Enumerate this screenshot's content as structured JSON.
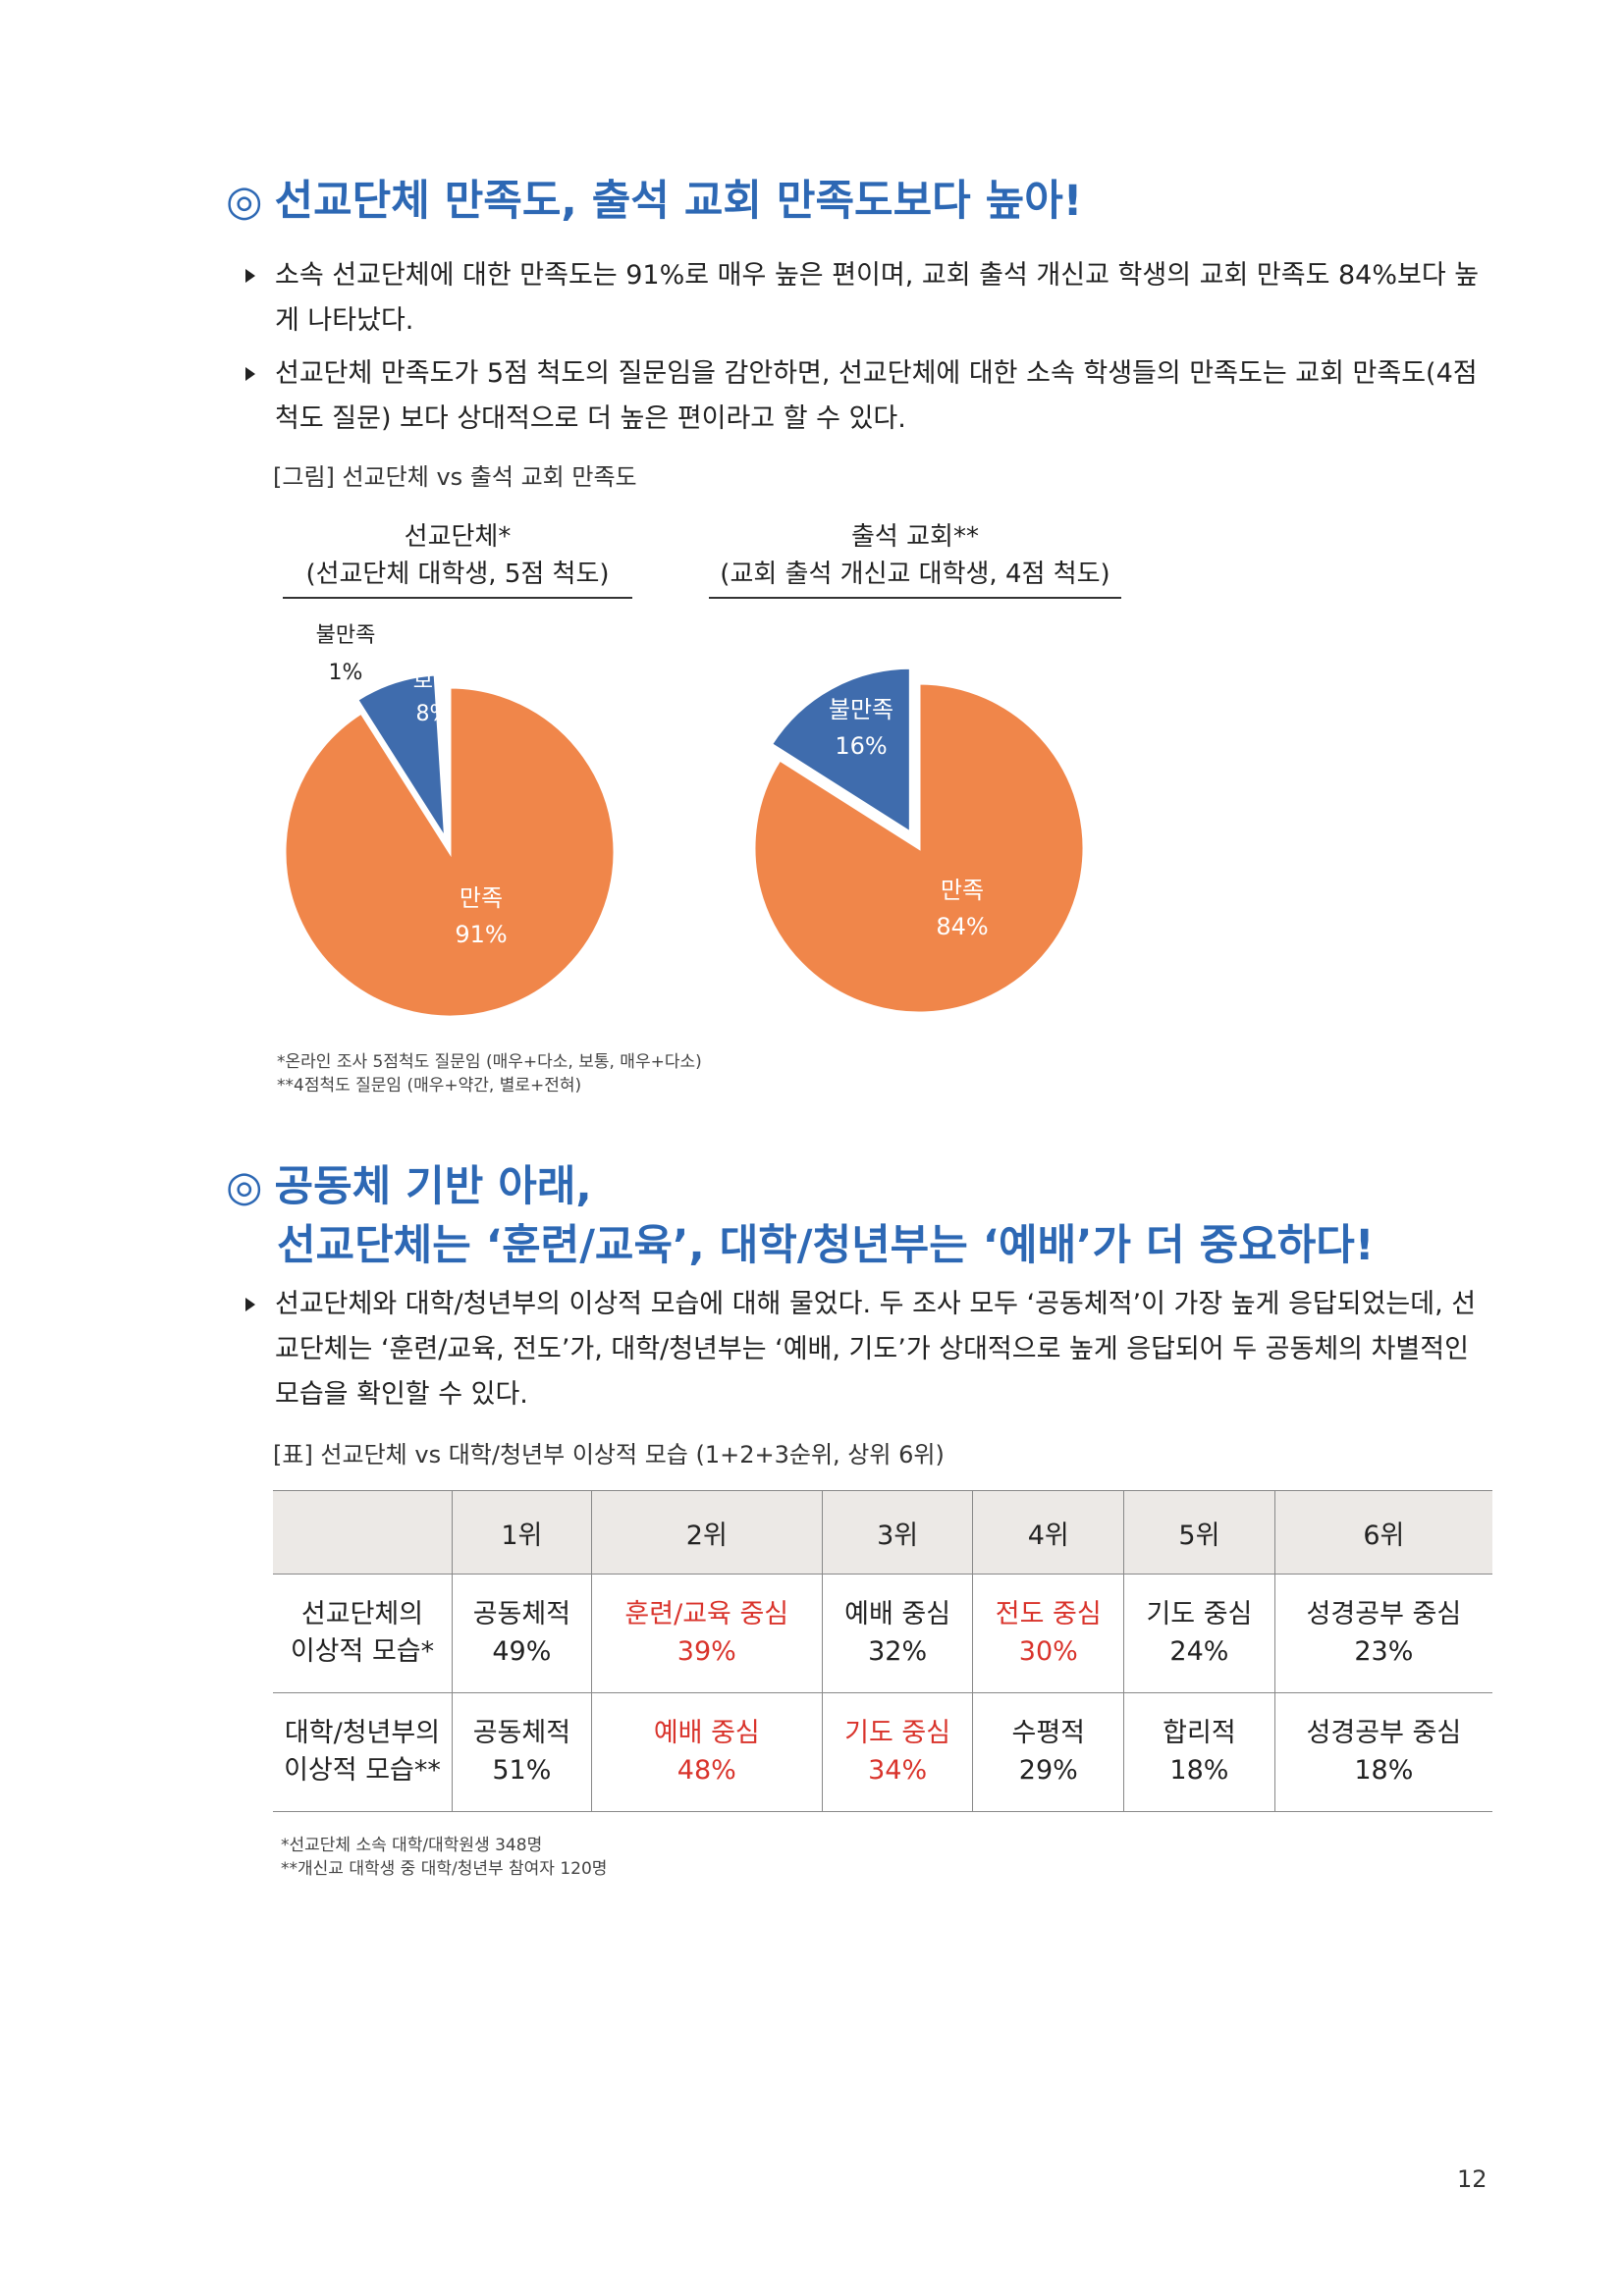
{
  "section1": {
    "mark": "◎",
    "title": "선교단체 만족도, 출석 교회 만족도보다 높아!",
    "bullets": [
      "소속 선교단체에 대한 만족도는 91%로 매우 높은 편이며, 교회 출석 개신교 학생의 교회 만족도 84%보다 높게 나타났다.",
      "선교단체 만족도가 5점 척도의 질문임을 감안하면, 선교단체에 대한 소속 학생들의 만족도는 교회 만족도(4점 척도 질문) 보다 상대적으로 더 높은 편이라고 할 수 있다."
    ],
    "figure_caption": "[그림] 선교단체 vs 출석 교회 만족도",
    "pie_left": {
      "title_line1": "선교단체*",
      "title_line2": "(선교단체 대학생, 5점 척도)"
    },
    "pie_right": {
      "title_line1": "출석 교회**",
      "title_line2": "(교회 출석 개신교 대학생, 4점 척도)"
    },
    "notes": [
      "*온라인 조사 5점척도 질문임 (매우+다소, 보통, 매우+다소)",
      "**4점척도 질문임 (매우+약간, 별로+전혀)"
    ]
  },
  "chart_data": [
    {
      "type": "pie",
      "title": "선교단체*",
      "subtitle": "(선교단체 대학생, 5점 척도)",
      "slices": [
        {
          "label": "만족",
          "value": 91,
          "display": "91%",
          "color": "#f0864a"
        },
        {
          "label": "불만족",
          "value": 1,
          "display": "1%",
          "color": "#ffffff"
        },
        {
          "label": "보통",
          "value": 8,
          "display": "8%",
          "color": "#3f6cad"
        }
      ]
    },
    {
      "type": "pie",
      "title": "출석 교회**",
      "subtitle": "(교회 출석 개신교 대학생, 4점 척도)",
      "slices": [
        {
          "label": "만족",
          "value": 84,
          "display": "84%",
          "color": "#f0864a"
        },
        {
          "label": "불만족",
          "value": 16,
          "display": "16%",
          "color": "#3f6cad"
        }
      ]
    }
  ],
  "section2": {
    "mark": "◎",
    "title_line1": "공동체 기반 아래,",
    "title_line2": "선교단체는 ‘훈련/교육’, 대학/청년부는 ‘예배’가 더 중요하다!",
    "bullet": "선교단체와 대학/청년부의 이상적 모습에 대해 물었다. 두 조사 모두 ‘공동체적’이 가장 높게 응답되었는데, 선교단체는 ‘훈련/교육, 전도’가, 대학/청년부는 ‘예배, 기도’가 상대적으로 높게 응답되어 두 공동체의 차별적인 모습을 확인할 수 있다.",
    "table_caption": "[표] 선교단체 vs 대학/청년부 이상적 모습 (1+2+3순위, 상위 6위)",
    "table": {
      "headers": [
        "",
        "1위",
        "2위",
        "3위",
        "4위",
        "5위",
        "6위"
      ],
      "rows": [
        {
          "label_line1": "선교단체의",
          "label_line2": "이상적 모습*",
          "cells": [
            {
              "name": "공동체적",
              "pct": "49%"
            },
            {
              "name": "훈련/교육 중심",
              "pct": "39%"
            },
            {
              "name": "예배 중심",
              "pct": "32%"
            },
            {
              "name": "전도 중심",
              "pct": "30%"
            },
            {
              "name": "기도 중심",
              "pct": "24%"
            },
            {
              "name": "성경공부 중심",
              "pct": "23%"
            }
          ]
        },
        {
          "label_line1": "대학/청년부의",
          "label_line2": "이상적 모습**",
          "cells": [
            {
              "name": "공동체적",
              "pct": "51%"
            },
            {
              "name": "예배 중심",
              "pct": "48%"
            },
            {
              "name": "기도 중심",
              "pct": "34%"
            },
            {
              "name": "수평적",
              "pct": "29%"
            },
            {
              "name": "합리적",
              "pct": "18%"
            },
            {
              "name": "성경공부 중심",
              "pct": "18%"
            }
          ]
        }
      ],
      "highlight_color": "#d9332b"
    },
    "notes": [
      "*선교단체 소속 대학/대학원생 348명",
      "**개신교 대학생 중 대학/청년부 참여자 120명"
    ]
  },
  "page_number": "12"
}
